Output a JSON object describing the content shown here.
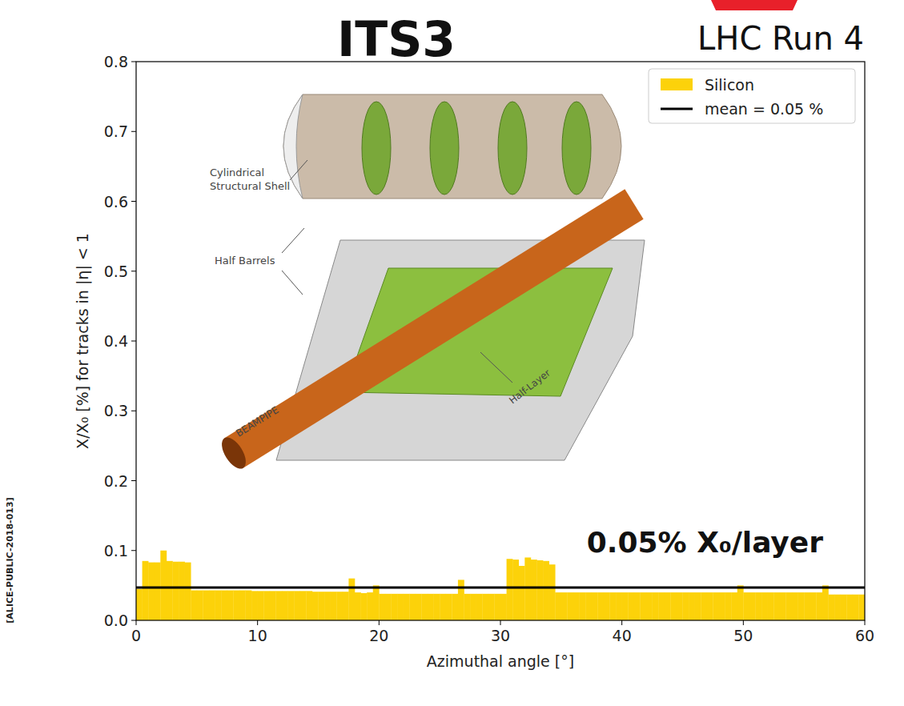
{
  "chart_data": {
    "type": "histogram",
    "title": "ITS3",
    "subtitle": "LHC Run 4",
    "source": "[ALICE-PUBLIC-2018-013]",
    "xlabel": "Azimuthal angle [°]",
    "ylabel": "X/X₀ [%] for tracks in |η| < 1",
    "annotation": "0.05% X₀/layer",
    "bins": [
      0,
      0.5,
      1,
      1.5,
      2,
      2.5,
      3,
      3.5,
      4,
      4.5,
      5,
      5.5,
      6,
      6.5,
      7,
      7.5,
      8,
      8.5,
      9,
      9.5,
      10,
      10.5,
      11,
      11.5,
      12,
      12.5,
      13,
      13.5,
      14,
      14.5,
      15,
      15.5,
      16,
      16.5,
      17,
      17.5,
      18,
      18.5,
      19,
      19.5,
      20,
      20.5,
      21,
      21.5,
      22,
      22.5,
      23,
      23.5,
      24,
      24.5,
      25,
      25.5,
      26,
      26.5,
      27,
      27.5,
      28,
      28.5,
      29,
      29.5,
      30,
      30.5,
      31,
      31.5,
      32,
      32.5,
      33,
      33.5,
      34,
      34.5,
      35,
      35.5,
      36,
      36.5,
      37,
      37.5,
      38,
      38.5,
      39,
      39.5,
      40,
      40.5,
      41,
      41.5,
      42,
      42.5,
      43,
      43.5,
      44,
      44.5,
      45,
      45.5,
      46,
      46.5,
      47,
      47.5,
      48,
      48.5,
      49,
      49.5,
      50,
      50.5,
      51,
      51.5,
      52,
      52.5,
      53,
      53.5,
      54,
      54.5,
      55,
      55.5,
      56,
      56.5,
      57,
      57.5,
      58,
      58.5,
      59,
      59.5,
      60
    ],
    "series": [
      {
        "name": "Silicon",
        "color": "#fcd20a",
        "values": [
          0.045,
          0.085,
          0.083,
          0.083,
          0.1,
          0.085,
          0.084,
          0.084,
          0.083,
          0.043,
          0.043,
          0.043,
          0.043,
          0.043,
          0.043,
          0.043,
          0.043,
          0.043,
          0.043,
          0.042,
          0.042,
          0.042,
          0.042,
          0.042,
          0.042,
          0.042,
          0.042,
          0.042,
          0.042,
          0.041,
          0.041,
          0.041,
          0.041,
          0.041,
          0.041,
          0.06,
          0.04,
          0.039,
          0.04,
          0.05,
          0.038,
          0.038,
          0.038,
          0.038,
          0.038,
          0.038,
          0.038,
          0.038,
          0.038,
          0.038,
          0.038,
          0.038,
          0.038,
          0.058,
          0.038,
          0.038,
          0.038,
          0.038,
          0.038,
          0.038,
          0.038,
          0.088,
          0.087,
          0.078,
          0.09,
          0.087,
          0.086,
          0.085,
          0.08,
          0.04,
          0.04,
          0.04,
          0.04,
          0.04,
          0.04,
          0.04,
          0.04,
          0.04,
          0.04,
          0.04,
          0.04,
          0.04,
          0.04,
          0.04,
          0.04,
          0.04,
          0.04,
          0.04,
          0.04,
          0.04,
          0.04,
          0.04,
          0.04,
          0.04,
          0.04,
          0.04,
          0.04,
          0.04,
          0.04,
          0.05,
          0.04,
          0.04,
          0.04,
          0.04,
          0.04,
          0.04,
          0.04,
          0.04,
          0.04,
          0.04,
          0.04,
          0.04,
          0.04,
          0.05,
          0.037,
          0.037,
          0.037,
          0.037,
          0.037,
          0.037
        ]
      }
    ],
    "mean": {
      "name": "mean = 0.05 %",
      "value": 0.047,
      "color": "#000000"
    },
    "xlim": [
      0,
      60
    ],
    "ylim": [
      0,
      0.8
    ],
    "xticks": [
      0,
      10,
      20,
      30,
      40,
      50,
      60
    ],
    "yticks": [
      {
        "value": 0,
        "label": "0.0"
      },
      0.1,
      0.2,
      0.3,
      0.4,
      0.5,
      0.6,
      0.7,
      0.8
    ],
    "legend": "upper right",
    "illustration": {
      "shell": "Cylindrical Structural Shell",
      "half_barrels": "Half Barrels",
      "beampipe": "BEAMPIPE",
      "half_layer": "Half-Layer"
    }
  }
}
